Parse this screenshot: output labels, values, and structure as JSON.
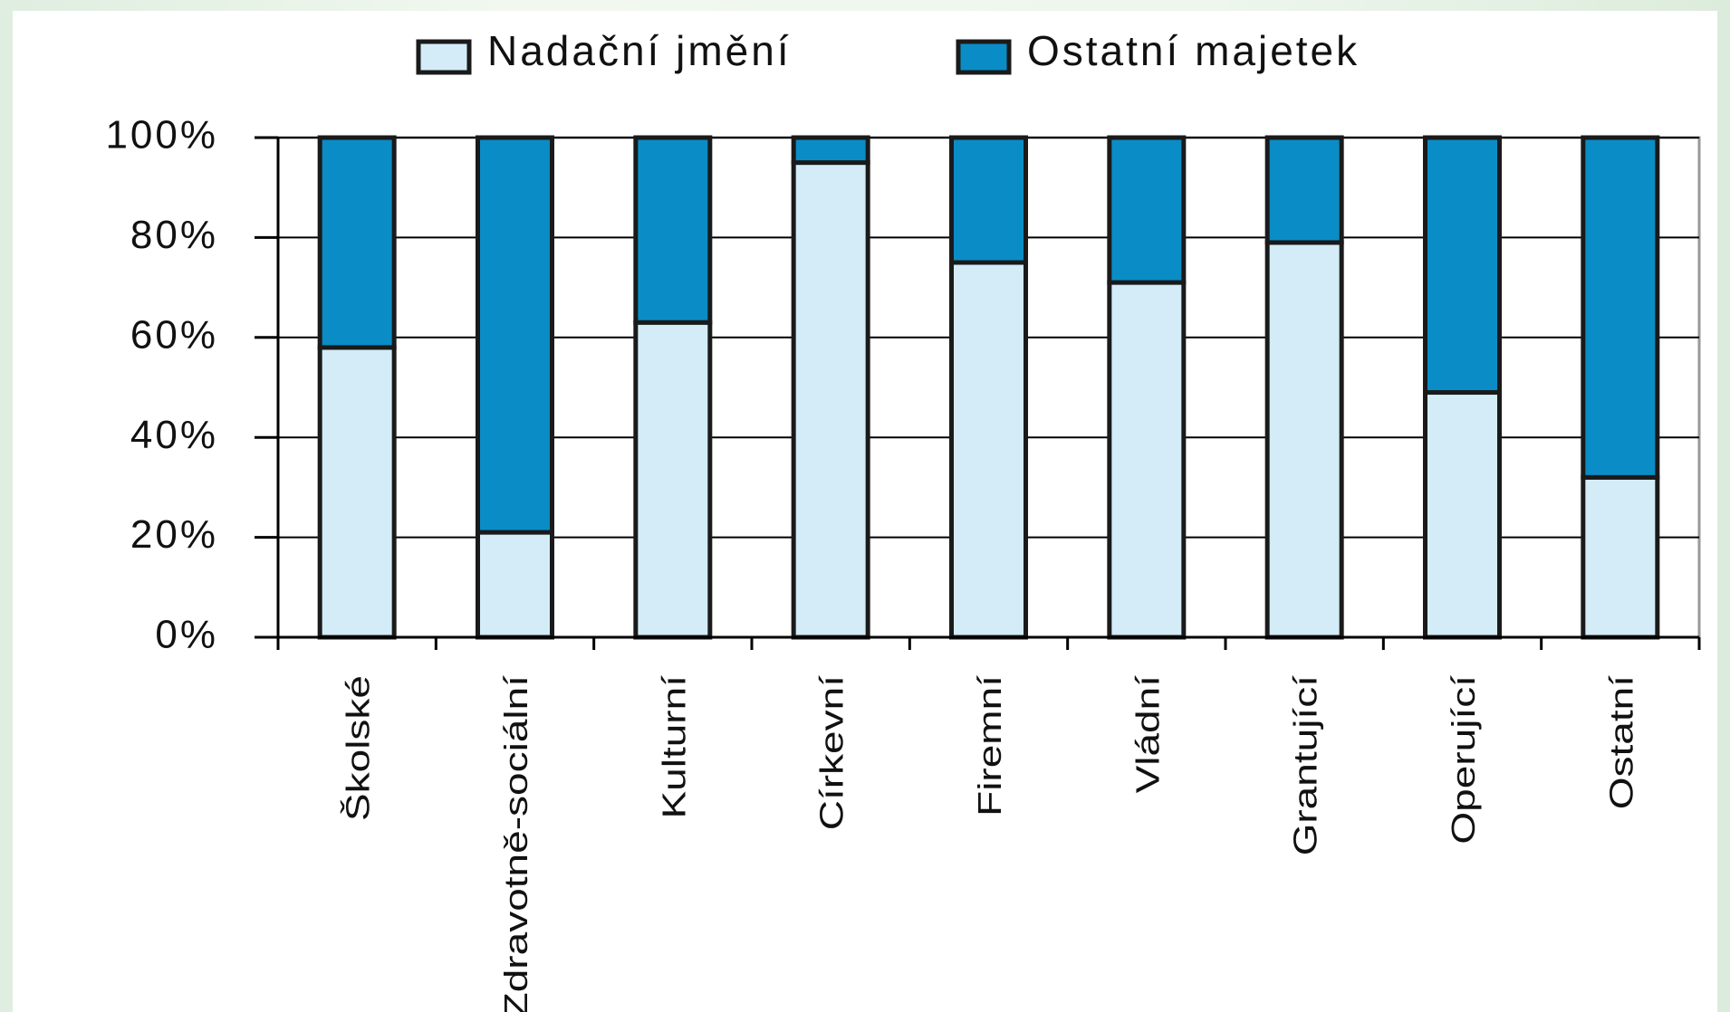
{
  "chart_data": {
    "type": "stacked_bar",
    "categories": [
      "Školské",
      "Zdravotně-sociální",
      "Kulturní",
      "Církevní",
      "Firemní",
      "Vládní",
      "Grantující",
      "Operující",
      "Ostatní"
    ],
    "series": [
      {
        "name": "Nadační jmění",
        "color": "#d3ecf8",
        "values": [
          58,
          21,
          63,
          95,
          75,
          71,
          79,
          49,
          32
        ]
      },
      {
        "name": "Ostatní majetek",
        "color": "#0a8dc6",
        "values": [
          42,
          79,
          37,
          5,
          25,
          29,
          21,
          51,
          68
        ]
      }
    ],
    "ylim": [
      0,
      100
    ],
    "yticks": [
      {
        "value": 0,
        "label": "0%"
      },
      {
        "value": 20,
        "label": "20%"
      },
      {
        "value": 40,
        "label": "40%"
      },
      {
        "value": 60,
        "label": "60%"
      },
      {
        "value": 80,
        "label": "80%"
      },
      {
        "value": 100,
        "label": "100%"
      }
    ],
    "grid": true,
    "legend": "top"
  }
}
